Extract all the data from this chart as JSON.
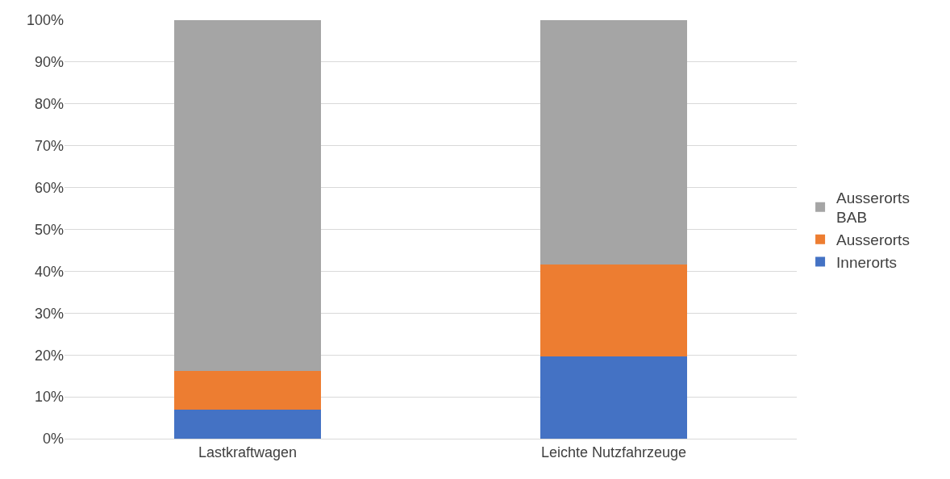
{
  "chart_data": {
    "type": "bar",
    "stacked": true,
    "categories": [
      "Lastkraftwagen",
      "Leichte Nutzfahrzeuge"
    ],
    "series": [
      {
        "name": "Innerorts",
        "color": "#4472c4",
        "values": [
          7.0,
          19.6
        ]
      },
      {
        "name": "Ausserorts",
        "color": "#ed7d31",
        "values": [
          9.2,
          22.1
        ]
      },
      {
        "name": "Ausserorts\nBAB",
        "color": "#a5a5a5",
        "values": [
          83.8,
          58.3
        ]
      }
    ],
    "ylim": [
      0,
      100
    ],
    "yticks": [
      {
        "value": 0,
        "label": "0%"
      },
      {
        "value": 10,
        "label": "10%"
      },
      {
        "value": 20,
        "label": "20%"
      },
      {
        "value": 30,
        "label": "30%"
      },
      {
        "value": 40,
        "label": "40%"
      },
      {
        "value": 50,
        "label": "50%"
      },
      {
        "value": 60,
        "label": "60%"
      },
      {
        "value": 70,
        "label": "70%"
      },
      {
        "value": 80,
        "label": "80%"
      },
      {
        "value": 90,
        "label": "90%"
      },
      {
        "value": 100,
        "label": "100%"
      }
    ],
    "grid": "y",
    "legend": "right"
  }
}
